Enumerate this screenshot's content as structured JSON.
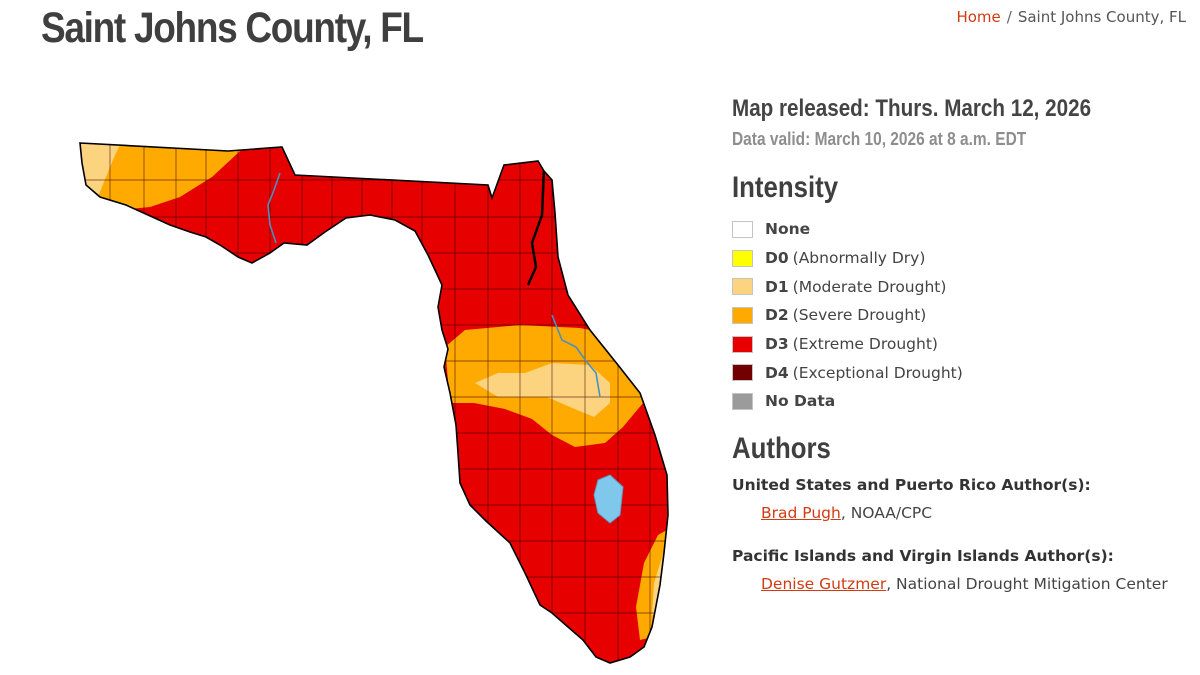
{
  "page": {
    "title": "Saint Johns County, FL",
    "breadcrumb": {
      "home": "Home",
      "separator": "/",
      "current": "Saint Johns County, FL"
    }
  },
  "map_info": {
    "released": "Map released: Thurs. March 12, 2026",
    "valid": "Data valid: March 10, 2026 at 8 a.m. EDT"
  },
  "intensity": {
    "heading": "Intensity",
    "items": [
      {
        "code": "None",
        "label": "",
        "color": "#ffffff"
      },
      {
        "code": "D0",
        "label": "(Abnormally Dry)",
        "color": "#ffff00"
      },
      {
        "code": "D1",
        "label": "(Moderate Drought)",
        "color": "#fcd37f"
      },
      {
        "code": "D2",
        "label": "(Severe Drought)",
        "color": "#ffaa00"
      },
      {
        "code": "D3",
        "label": "(Extreme Drought)",
        "color": "#e60000"
      },
      {
        "code": "D4",
        "label": "(Exceptional Drought)",
        "color": "#730000"
      },
      {
        "code": "No Data",
        "label": "",
        "color": "#9b9b9b"
      }
    ]
  },
  "authors": {
    "heading": "Authors",
    "groups": [
      {
        "title": "United States and Puerto Rico Author(s):",
        "name": "Brad Pugh",
        "org": ", NOAA/CPC"
      },
      {
        "title": "Pacific Islands and Virgin Islands Author(s):",
        "name": "Denise Gutzmer",
        "org": ", National Drought Mitigation Center"
      }
    ]
  },
  "colors": {
    "accent": "#d13b14",
    "water": "#7fc8ec"
  }
}
